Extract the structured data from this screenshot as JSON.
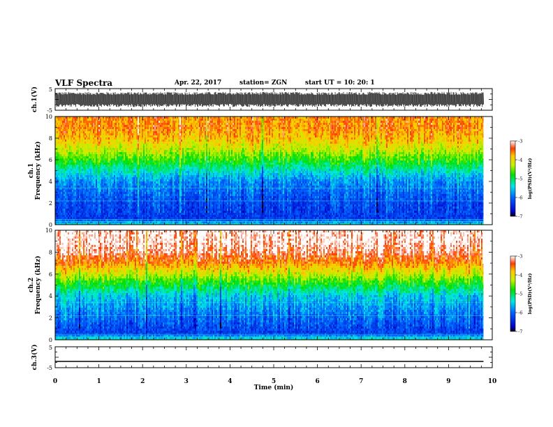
{
  "header": {
    "title": "VLF Spectra",
    "date": "Apr. 22, 2017",
    "station": "station= ZGN",
    "start": "start  UT =   10: 20: 1"
  },
  "chart_data": [
    {
      "type": "line",
      "name": "ch1-waveform",
      "ylabel": "ch.1(V)",
      "ylim": [
        -5,
        5
      ],
      "yticks": [
        "5",
        "-5"
      ],
      "xlim": [
        0,
        10
      ],
      "description_values": {
        "dense_oscillation_range": [
          -3.5,
          3.5
        ],
        "data_end_min": 9.8
      }
    },
    {
      "type": "heatmap",
      "name": "ch1-spectrogram",
      "ylabel": "ch.1\nFrequency  (kHz)",
      "ylim": [
        0,
        10
      ],
      "yticks": [
        "0",
        "2",
        "4",
        "6",
        "8",
        "10"
      ],
      "xlim": [
        0,
        10
      ],
      "data_end_min": 9.8,
      "colorbar": {
        "label": "log(PSD)(V²/Hz)",
        "range": [
          -7,
          -3
        ],
        "ticks": [
          "-3",
          "-4",
          "-5",
          "-6",
          "-7"
        ]
      },
      "profile_log_psd_by_freq_khz": [
        [
          0,
          -5.4
        ],
        [
          0.6,
          -6.3
        ],
        [
          2,
          -6.2
        ],
        [
          4,
          -5.8
        ],
        [
          5,
          -5.3
        ],
        [
          6,
          -4.7
        ],
        [
          7,
          -4.2
        ],
        [
          8,
          -3.8
        ],
        [
          9,
          -3.6
        ],
        [
          10,
          -3.6
        ]
      ]
    },
    {
      "type": "heatmap",
      "name": "ch2-spectrogram",
      "ylabel": "ch.2\nFrequency  (kHz)",
      "ylim": [
        0,
        10
      ],
      "yticks": [
        "0",
        "2",
        "4",
        "6",
        "8",
        "10"
      ],
      "xlim": [
        0,
        10
      ],
      "data_end_min": 9.8,
      "colorbar": {
        "label": "log(PSD)(V²/Hz)",
        "range": [
          -7,
          -3
        ],
        "ticks": [
          "-3",
          "-4",
          "-5",
          "-6",
          "-7"
        ]
      },
      "profile_log_psd_by_freq_khz": [
        [
          0,
          -5.2
        ],
        [
          0.6,
          -6.3
        ],
        [
          2,
          -6.0
        ],
        [
          4,
          -5.5
        ],
        [
          5,
          -4.9
        ],
        [
          6,
          -4.2
        ],
        [
          7,
          -3.6
        ],
        [
          8,
          -3.2
        ],
        [
          9,
          -3.0
        ],
        [
          10,
          -3.0
        ]
      ]
    },
    {
      "type": "line",
      "name": "ch3-waveform",
      "ylabel": "ch.3(V)",
      "ylim": [
        -5,
        5
      ],
      "yticks": [
        "5",
        "-5"
      ],
      "xlim": [
        0,
        10
      ],
      "values": {
        "constant_level_v": -2,
        "data_end_min": 9.8
      }
    }
  ],
  "xaxis": {
    "label": "Time  (min)",
    "ticks": [
      "0",
      "1",
      "2",
      "3",
      "4",
      "5",
      "6",
      "7",
      "8",
      "9",
      "10"
    ]
  }
}
